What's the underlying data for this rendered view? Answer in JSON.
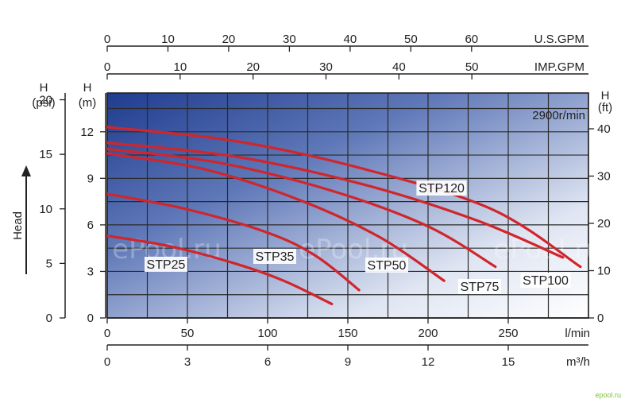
{
  "chart_data": {
    "type": "line",
    "title": "",
    "speed_label": "2900r/min",
    "watermarks": [
      "ePool.ru",
      "ePool.ru",
      "ePool.ru",
      ".ru"
    ],
    "corner_mark": "epool.ru",
    "axes": {
      "x_lmin": {
        "label": "l/min",
        "ticks": [
          0,
          50,
          100,
          150,
          200,
          250
        ],
        "range": [
          0,
          300
        ]
      },
      "x_m3h": {
        "label": "m³/h",
        "ticks": [
          0,
          3,
          6,
          9,
          12,
          15
        ],
        "range": [
          0,
          18
        ]
      },
      "x_usgpm": {
        "label": "U.S.GPM",
        "ticks": [
          0,
          10,
          20,
          30,
          40,
          50,
          60
        ],
        "range": [
          0,
          79.25
        ]
      },
      "x_impgpm": {
        "label": "IMP.GPM",
        "ticks": [
          0,
          10,
          20,
          30,
          40,
          50
        ],
        "range": [
          0,
          65.99
        ]
      },
      "y_m": {
        "label_top": "H",
        "label_unit": "(m)",
        "ticks": [
          0,
          3,
          6,
          9,
          12
        ],
        "range": [
          0,
          14.5
        ]
      },
      "y_psi": {
        "label_top": "H",
        "label_unit": "(psi)",
        "ticks": [
          0,
          5,
          10,
          15,
          20
        ],
        "range": [
          0,
          20.62
        ]
      },
      "y_ft": {
        "label_top": "H",
        "label_unit": "(ft)",
        "ticks": [
          0,
          10,
          20,
          30,
          40
        ],
        "range": [
          0,
          47.57
        ]
      },
      "head_arrow_label": "Head"
    },
    "series": [
      {
        "name": "STP25",
        "x": [
          0,
          40,
          80,
          110,
          140
        ],
        "y": [
          5.3,
          4.6,
          3.5,
          2.4,
          0.9
        ]
      },
      {
        "name": "STP35",
        "x": [
          0,
          50,
          100,
          130,
          157
        ],
        "y": [
          8.0,
          7.0,
          5.5,
          4.0,
          1.8
        ]
      },
      {
        "name": "STP50",
        "x": [
          0,
          60,
          120,
          170,
          210
        ],
        "y": [
          10.6,
          9.6,
          7.6,
          5.2,
          2.4
        ]
      },
      {
        "name": "STP75",
        "x": [
          0,
          70,
          140,
          200,
          242
        ],
        "y": [
          10.9,
          10.0,
          8.2,
          5.9,
          3.3
        ]
      },
      {
        "name": "STP100",
        "x": [
          0,
          80,
          160,
          230,
          284
        ],
        "y": [
          11.3,
          10.4,
          8.6,
          6.3,
          3.9
        ]
      },
      {
        "name": "STP120",
        "x": [
          0,
          80,
          160,
          240,
          295
        ],
        "y": [
          12.3,
          11.4,
          9.6,
          7.0,
          3.3
        ]
      }
    ],
    "curve_labels": [
      "STP25",
      "STP35",
      "STP50",
      "STP75",
      "STP100",
      "STP120"
    ]
  }
}
